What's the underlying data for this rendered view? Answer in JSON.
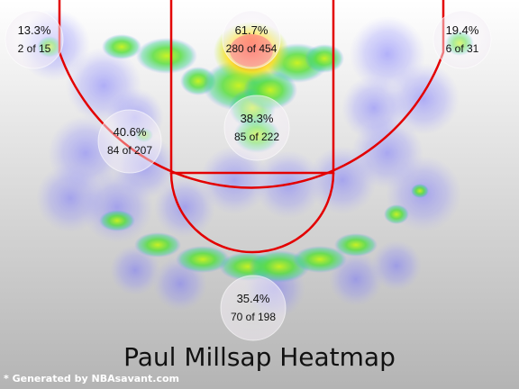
{
  "chart_data": {
    "type": "heatmap",
    "title": "Paul Millsap Heatmap",
    "credit": "* Generated by NBAsavant.com",
    "zones": [
      {
        "name": "left-corner-three",
        "pct": "13.3%",
        "count": "2 of 15",
        "made": 2,
        "attempts": 15
      },
      {
        "name": "restricted-area",
        "pct": "61.7%",
        "count": "280 of 454",
        "made": 280,
        "attempts": 454
      },
      {
        "name": "right-corner-three",
        "pct": "19.4%",
        "count": "6 of 31",
        "made": 6,
        "attempts": 31
      },
      {
        "name": "left-mid-range",
        "pct": "40.6%",
        "count": "84 of 207",
        "made": 84,
        "attempts": 207
      },
      {
        "name": "paint-non-ra",
        "pct": "38.3%",
        "count": "85 of 222",
        "made": 85,
        "attempts": 222
      },
      {
        "name": "above-break-three",
        "pct": "35.4%",
        "count": "70 of 198",
        "made": 70,
        "attempts": 198
      }
    ],
    "colors": {
      "background_top": "#ffffff",
      "background_bottom": "#b4b4b4",
      "court_lines": "#e30000",
      "heat_low": "#7a78ff",
      "heat_mid": "#3fdc3f",
      "heat_high": "#ff4a2a",
      "title_color": "#111111"
    }
  }
}
